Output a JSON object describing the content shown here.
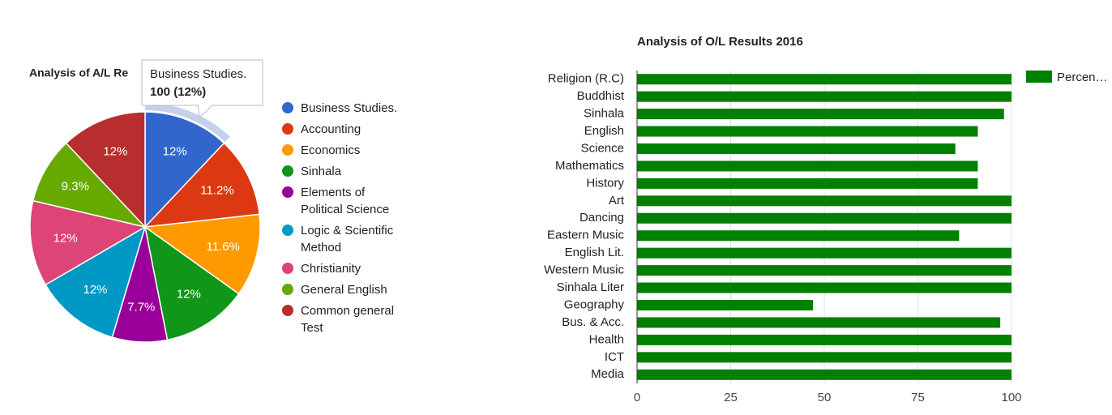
{
  "chart_data": [
    {
      "type": "pie",
      "title": "Analysis of A/L Re",
      "categories": [
        "Business Studies.",
        "Accounting",
        "Economics",
        "Sinhala",
        "Elements of Political Science",
        "Logic & Scientific Method",
        "Christianity",
        "General English",
        "Common general Test"
      ],
      "values": [
        12,
        11.2,
        11.6,
        12,
        7.7,
        12,
        12,
        9.3,
        12
      ],
      "value_labels": [
        "12%",
        "11.2%",
        "11.6%",
        "12%",
        "7.7%",
        "12%",
        "12%",
        "9.3%",
        "12%"
      ],
      "colors": [
        "#3366cc",
        "#dc3912",
        "#ff9900",
        "#109618",
        "#990099",
        "#0099c6",
        "#dd4477",
        "#66aa00",
        "#b82e2e"
      ],
      "legend": "right",
      "tooltip": {
        "title": "Business Studies.",
        "text": "100 (12%)"
      }
    },
    {
      "type": "hbar",
      "title": "Analysis of O/L Results 2016",
      "categories": [
        "Religion (R.C)",
        "Buddhist",
        "Sinhala",
        "English",
        "Science",
        "Mathematics",
        "History",
        "Art",
        "Dancing",
        "Eastern Music",
        "English Lit.",
        "Western Music",
        "Sinhala Liter",
        "Geography",
        "Bus. & Acc.",
        "Health",
        "ICT",
        "Media"
      ],
      "series": [
        {
          "name": "Percen…",
          "color": "#008000",
          "values": [
            100,
            100,
            98,
            91,
            85,
            91,
            91,
            100,
            100,
            86,
            100,
            100,
            100,
            47,
            97,
            100,
            100,
            100
          ]
        }
      ],
      "xlim": [
        0,
        100
      ],
      "xticks": [
        0,
        25,
        50,
        75,
        100
      ],
      "grid": true,
      "legend": "right"
    }
  ]
}
